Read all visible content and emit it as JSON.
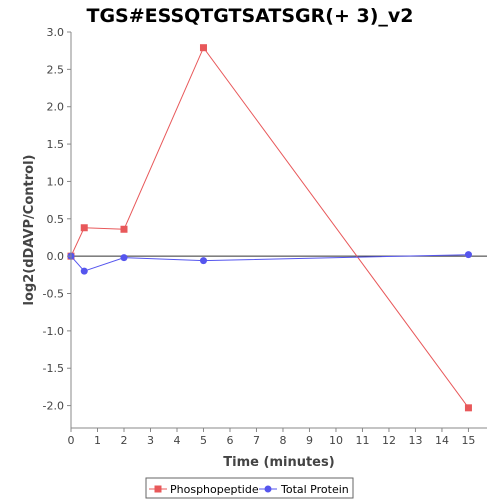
{
  "chart_data": {
    "type": "line",
    "title": "TGS#ESSQTGTSATSGR(+ 3)_v2",
    "xlabel": "Time (minutes)",
    "ylabel": "log2(dDAVP/Control)",
    "xlim": [
      0,
      15.7
    ],
    "ylim": [
      -2.3,
      3.0
    ],
    "xticks": [
      0,
      1,
      2,
      3,
      4,
      5,
      6,
      7,
      8,
      9,
      10,
      11,
      12,
      13,
      14,
      15
    ],
    "yticks": [
      3.0,
      2.5,
      2.0,
      1.5,
      1.0,
      0.5,
      0.0,
      -0.5,
      -1.0,
      -1.5,
      -2.0
    ],
    "ytick_labels": [
      "3.0",
      "2.5",
      "2.0",
      "1.5",
      "1.0",
      "0.5",
      "0.0",
      "-0.5",
      "-1.0",
      "-1.5",
      "-2.0"
    ],
    "grid": false,
    "zero_line": true,
    "legend_position": "bottom",
    "series": [
      {
        "name": "Phosphopeptide",
        "color": "#e8585a",
        "marker": "square",
        "x": [
          0,
          0.5,
          2,
          5,
          15
        ],
        "y": [
          0.0,
          0.38,
          0.36,
          2.79,
          -2.03
        ]
      },
      {
        "name": "Total Protein",
        "color": "#5555ee",
        "marker": "circle",
        "x": [
          0,
          0.5,
          2,
          5,
          15
        ],
        "y": [
          0.0,
          -0.2,
          -0.02,
          -0.06,
          0.02
        ]
      }
    ]
  }
}
